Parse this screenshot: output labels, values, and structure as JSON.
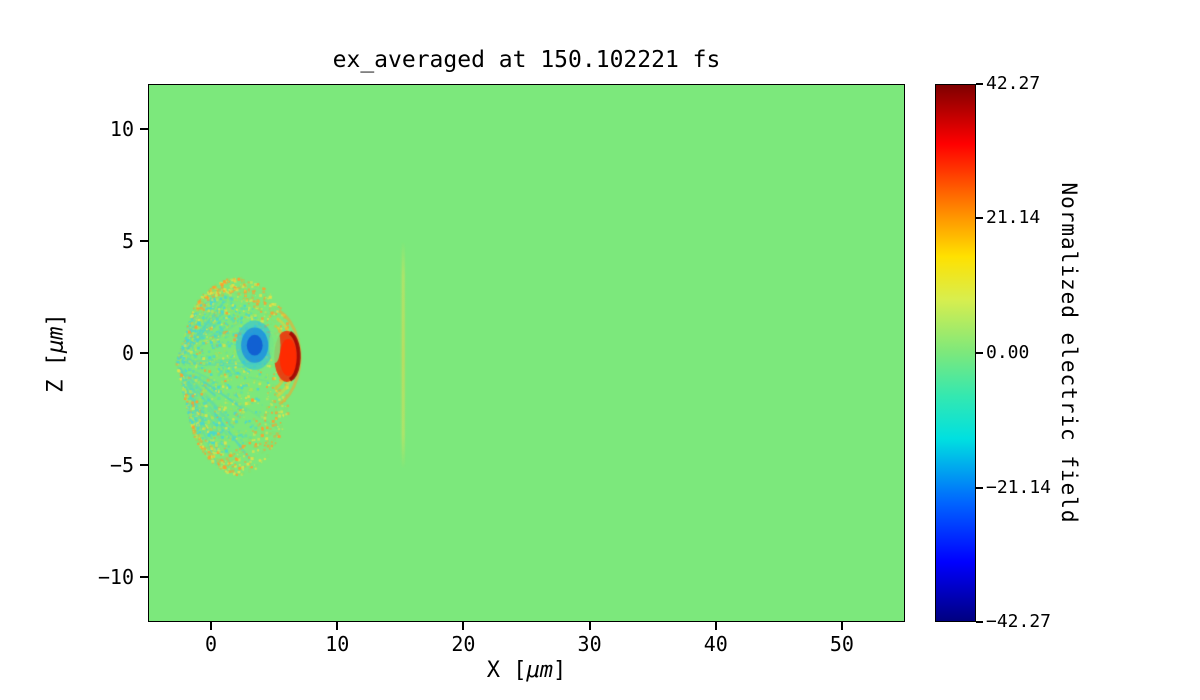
{
  "figure": {
    "title": "ex_averaged at 150.102221 fs",
    "xlabel": "X [μm]",
    "xlabel_pre": "X [",
    "xlabel_unit": "μm",
    "xlabel_post": "]",
    "ylabel": "Z [μm]",
    "ylabel_pre": "Z [",
    "ylabel_unit": "μm",
    "ylabel_post": "]",
    "colorbar_label": "Normalized electric field",
    "x_ticks": [
      {
        "value": 0,
        "label": "0"
      },
      {
        "value": 10,
        "label": "10"
      },
      {
        "value": 20,
        "label": "20"
      },
      {
        "value": 30,
        "label": "30"
      },
      {
        "value": 40,
        "label": "40"
      },
      {
        "value": 50,
        "label": "50"
      }
    ],
    "y_ticks": [
      {
        "value": 10,
        "label": "10"
      },
      {
        "value": 5,
        "label": "5"
      },
      {
        "value": 0,
        "label": "0"
      },
      {
        "value": -5,
        "label": "−5"
      },
      {
        "value": -10,
        "label": "−10"
      }
    ],
    "colorbar_ticks": [
      {
        "value": 42.27,
        "label": "42.27"
      },
      {
        "value": 21.14,
        "label": "21.14"
      },
      {
        "value": 0.0,
        "label": "0.00"
      },
      {
        "value": -21.14,
        "label": "−21.14"
      },
      {
        "value": -42.27,
        "label": "−42.27"
      }
    ]
  },
  "chart_data": {
    "type": "heatmap",
    "title": "ex_averaged at 150.102221 fs",
    "xlabel": "X [μm]",
    "ylabel": "Z [μm]",
    "xlim": [
      -5,
      55
    ],
    "ylim": [
      -12,
      12
    ],
    "x_ticks": [
      0,
      10,
      20,
      30,
      40,
      50
    ],
    "y_ticks": [
      10,
      5,
      0,
      -5,
      -10
    ],
    "colormap": "jet",
    "clim": [
      -42.27,
      42.27
    ],
    "colorbar_label": "Normalized electric field",
    "colorbar_ticks": [
      42.27,
      21.14,
      0.0,
      -21.14,
      -42.27
    ],
    "background_value": 0.0,
    "background_color": "#7ce87c",
    "colormap_stops": [
      {
        "pos": 0.0,
        "color": "#000080"
      },
      {
        "pos": 0.11,
        "color": "#0000ff"
      },
      {
        "pos": 0.22,
        "color": "#0064ff"
      },
      {
        "pos": 0.34,
        "color": "#00e0e0"
      },
      {
        "pos": 0.42,
        "color": "#34e8b0"
      },
      {
        "pos": 0.5,
        "color": "#7ce87c"
      },
      {
        "pos": 0.6,
        "color": "#d8ee4e"
      },
      {
        "pos": 0.68,
        "color": "#ffe100"
      },
      {
        "pos": 0.77,
        "color": "#ff8400"
      },
      {
        "pos": 0.89,
        "color": "#ff0000"
      },
      {
        "pos": 1.0,
        "color": "#7f0000"
      }
    ],
    "features": [
      {
        "name": "plasma-wake-speckle-cone",
        "description": "turbulent speckled wake structure, cyan/yellow/orange speckles on green background",
        "apex_x": -2.9,
        "apex_z": -0.4,
        "max_radius_um": 9.3,
        "half_angle_deg": 62,
        "x_extent": [
          -3.0,
          6.8
        ],
        "z_extent": [
          -4.6,
          3.3
        ],
        "palette": [
          "#49d8cf",
          "#a5e35c",
          "#dfe44a",
          "#ff9e2e",
          "#8fe06a"
        ]
      },
      {
        "name": "negative-field-core",
        "description": "blue/cyan negative field pocket left of the red peak",
        "x": 3.4,
        "z": 0.35,
        "rx_um": 1.5,
        "rz_um": 1.1,
        "colors": [
          "#28bee6",
          "#1a8ce1",
          "#0f5ad2"
        ]
      },
      {
        "name": "front-rim-arcs",
        "description": "yellow/orange arcs around the leading edge",
        "x": 4.2,
        "z": -0.2,
        "radii_um": [
          1.9,
          2.35,
          2.8
        ],
        "colors": [
          "#ffb41e",
          "#f0cc32",
          "#ffa028"
        ]
      },
      {
        "name": "positive-field-peak",
        "description": "bright red crescent at the wake front, strongest field",
        "x": 5.95,
        "z": -0.15,
        "rx_um": 1.0,
        "rz_um": 1.15,
        "colors": [
          "#e8380f",
          "#ff2a00",
          "#9d0000"
        ]
      },
      {
        "name": "probe-filament",
        "description": "faint thin vertical yellowish filament",
        "x": 15.2,
        "z_extent": [
          -5.2,
          5.0
        ],
        "color": "#dce15a",
        "width_um": 0.25
      }
    ]
  }
}
